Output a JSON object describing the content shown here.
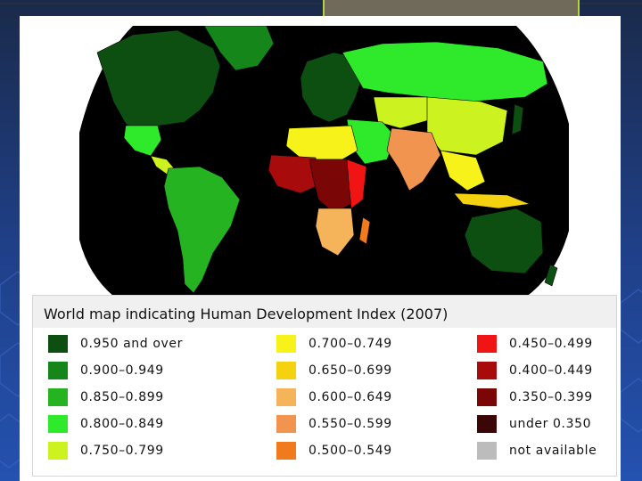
{
  "legend": {
    "title": "World map indicating Human Development Index (2007)",
    "categories": [
      {
        "label": "0.950 and over",
        "color": "#0d4f10",
        "icon": "swatch-very-high-1"
      },
      {
        "label": "0.900–0.949",
        "color": "#15861a",
        "icon": "swatch-very-high-2"
      },
      {
        "label": "0.850–0.899",
        "color": "#25b322",
        "icon": "swatch-high-1"
      },
      {
        "label": "0.800–0.849",
        "color": "#2eea2a",
        "icon": "swatch-high-2"
      },
      {
        "label": "0.750–0.799",
        "color": "#ccf220",
        "icon": "swatch-medium-1"
      },
      {
        "label": "0.700–0.749",
        "color": "#f6f21a",
        "icon": "swatch-medium-2"
      },
      {
        "label": "0.650–0.699",
        "color": "#f5d210",
        "icon": "swatch-medium-3"
      },
      {
        "label": "0.600–0.649",
        "color": "#f5b45a",
        "icon": "swatch-medium-4"
      },
      {
        "label": "0.550–0.599",
        "color": "#f19450",
        "icon": "swatch-medium-5"
      },
      {
        "label": "0.500–0.549",
        "color": "#f07a1c",
        "icon": "swatch-medium-6"
      },
      {
        "label": "0.450–0.499",
        "color": "#f01414",
        "icon": "swatch-low-1"
      },
      {
        "label": "0.400–0.449",
        "color": "#a70b0b",
        "icon": "swatch-low-2"
      },
      {
        "label": "0.350–0.399",
        "color": "#7a0606",
        "icon": "swatch-low-3"
      },
      {
        "label": "under 0.350",
        "color": "#3b0606",
        "icon": "swatch-low-4"
      },
      {
        "label": "not available",
        "color": "#bcbcbc",
        "icon": "swatch-na"
      }
    ]
  },
  "map": {
    "ocean_color": "#000000",
    "regions": [
      {
        "name": "north-america",
        "color": "#0d4f10"
      },
      {
        "name": "greenland",
        "color": "#15861a"
      },
      {
        "name": "mexico",
        "color": "#2eea2a"
      },
      {
        "name": "central-america",
        "color": "#ccf220"
      },
      {
        "name": "south-america",
        "color": "#25b322"
      },
      {
        "name": "europe",
        "color": "#0d4f10"
      },
      {
        "name": "russia",
        "color": "#2eea2a"
      },
      {
        "name": "central-asia",
        "color": "#ccf220"
      },
      {
        "name": "china",
        "color": "#ccf220"
      },
      {
        "name": "middle-east",
        "color": "#2eea2a"
      },
      {
        "name": "india",
        "color": "#f19450"
      },
      {
        "name": "southeast-asia",
        "color": "#f6f21a"
      },
      {
        "name": "japan",
        "color": "#0d4f10"
      },
      {
        "name": "north-africa",
        "color": "#f6f21a"
      },
      {
        "name": "west-africa",
        "color": "#a70b0b"
      },
      {
        "name": "central-africa",
        "color": "#7a0606"
      },
      {
        "name": "east-africa",
        "color": "#f01414"
      },
      {
        "name": "southern-africa",
        "color": "#f5b45a"
      },
      {
        "name": "madagascar",
        "color": "#f07a1c"
      },
      {
        "name": "australia",
        "color": "#0d4f10"
      },
      {
        "name": "new-zealand",
        "color": "#0d4f10"
      },
      {
        "name": "indonesia",
        "color": "#f5d210"
      }
    ]
  }
}
